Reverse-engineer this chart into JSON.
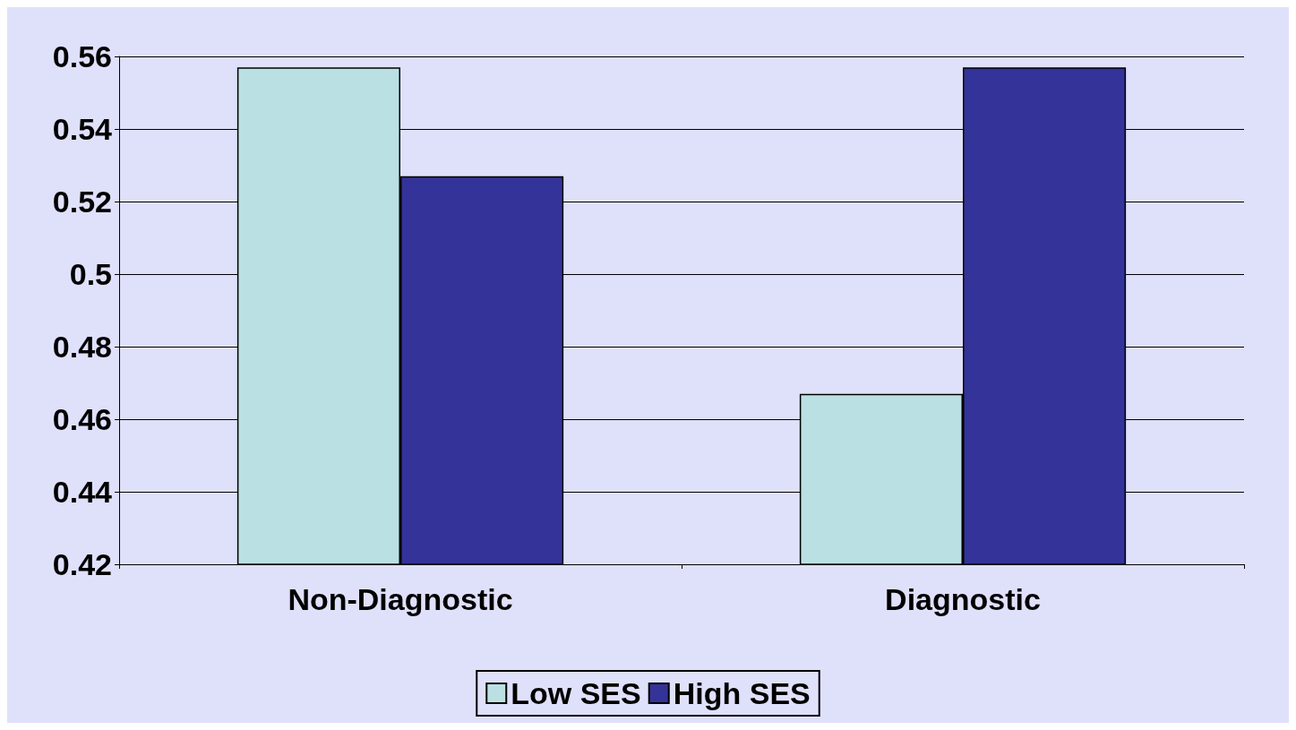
{
  "chart_data": {
    "type": "bar",
    "categories": [
      "Non-Diagnostic",
      "Diagnostic"
    ],
    "series": [
      {
        "name": "Low SES",
        "color": "#bbe0e3",
        "values": [
          0.557,
          0.467
        ]
      },
      {
        "name": "High SES",
        "color": "#333399",
        "values": [
          0.527,
          0.557
        ]
      }
    ],
    "ylim": [
      0.42,
      0.56
    ],
    "yticks": [
      0.42,
      0.44,
      0.46,
      0.48,
      0.5,
      0.52,
      0.54,
      0.56
    ],
    "grid": "y",
    "legend": "bottom"
  }
}
